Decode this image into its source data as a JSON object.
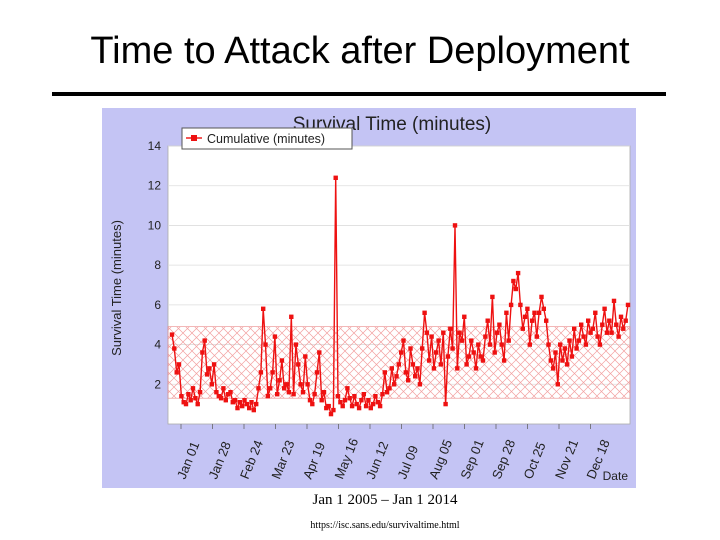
{
  "slide": {
    "title": "Time to Attack after Deployment",
    "caption": "Jan 1 2005 – Jan 1 2014",
    "source": "https://isc.sans.edu/survivaltime.html"
  },
  "colors": {
    "frame": "#c4c4f4",
    "plot_bg": "#ffffff",
    "series": "#ee1111",
    "hatch": "#f2a0a0",
    "grid": "#dddddd"
  },
  "chart_data": {
    "type": "line",
    "title": "Survival Time (minutes)",
    "ylabel": "Survival Time (minutes)",
    "xlabel": "Date",
    "legend": {
      "label": "Cumulative (minutes)",
      "position": "top-left"
    },
    "ylim": [
      0,
      14
    ],
    "yticks": [
      2,
      4,
      6,
      8,
      10,
      12,
      14
    ],
    "xticks": [
      "Jan 01",
      "Jan 28",
      "Feb 24",
      "Mar 23",
      "Apr 19",
      "May 16",
      "Jun 12",
      "Jul 09",
      "Aug 05",
      "Sep 01",
      "Sep 28",
      "Oct 25",
      "Nov 21",
      "Dec 18"
    ],
    "grid": true,
    "band": {
      "from": 1.3,
      "to": 4.9
    },
    "series": [
      {
        "name": "Cumulative (minutes)",
        "values": [
          4.5,
          3.8,
          2.6,
          3.0,
          1.4,
          1.1,
          1.0,
          1.5,
          1.2,
          1.8,
          1.3,
          1.0,
          1.6,
          3.6,
          4.2,
          2.5,
          2.8,
          2.0,
          3.0,
          1.6,
          1.4,
          1.3,
          1.8,
          1.2,
          1.5,
          1.6,
          1.1,
          1.2,
          0.8,
          1.1,
          0.9,
          1.2,
          1.0,
          0.8,
          1.1,
          0.7,
          1.0,
          1.8,
          2.6,
          5.8,
          4.0,
          1.4,
          1.8,
          2.6,
          4.4,
          1.5,
          2.2,
          3.2,
          1.8,
          2.0,
          1.6,
          5.4,
          1.5,
          4.0,
          3.0,
          2.0,
          1.6,
          3.4,
          2.0,
          1.2,
          1.0,
          1.5,
          2.6,
          3.6,
          1.2,
          1.6,
          0.8,
          0.9,
          0.5,
          0.7,
          12.4,
          1.4,
          1.1,
          0.9,
          1.2,
          1.8,
          1.3,
          0.9,
          1.4,
          1.0,
          0.8,
          1.2,
          1.5,
          0.9,
          1.2,
          0.8,
          1.0,
          1.4,
          1.1,
          0.9,
          1.5,
          2.6,
          1.6,
          1.8,
          2.8,
          2.0,
          2.4,
          3.0,
          3.6,
          4.2,
          2.6,
          2.2,
          3.8,
          3.0,
          2.4,
          2.8,
          2.0,
          3.8,
          5.6,
          4.6,
          3.2,
          4.4,
          2.8,
          3.6,
          4.2,
          3.0,
          4.6,
          1.0,
          3.4,
          4.8,
          3.8,
          10.0,
          2.8,
          4.6,
          4.2,
          5.4,
          3.0,
          3.4,
          4.2,
          3.6,
          2.8,
          4.0,
          3.4,
          3.2,
          4.4,
          5.2,
          4.0,
          6.4,
          3.6,
          4.6,
          5.0,
          4.0,
          3.2,
          5.6,
          4.2,
          6.0,
          7.2,
          6.8,
          7.6,
          6.0,
          4.8,
          5.4,
          5.8,
          4.0,
          5.2,
          5.6,
          4.4,
          5.6,
          6.4,
          5.8,
          5.2,
          4.0,
          3.2,
          2.8,
          3.6,
          2.0,
          4.0,
          3.2,
          3.8,
          3.0,
          4.2,
          3.4,
          4.8,
          3.8,
          4.2,
          5.0,
          4.4,
          4.0,
          5.2,
          4.6,
          4.8,
          5.6,
          4.4,
          4.0,
          5.0,
          5.8,
          4.6,
          5.2,
          4.6,
          6.2,
          5.0,
          4.4,
          5.4,
          4.8,
          5.2,
          6.0
        ]
      }
    ]
  }
}
